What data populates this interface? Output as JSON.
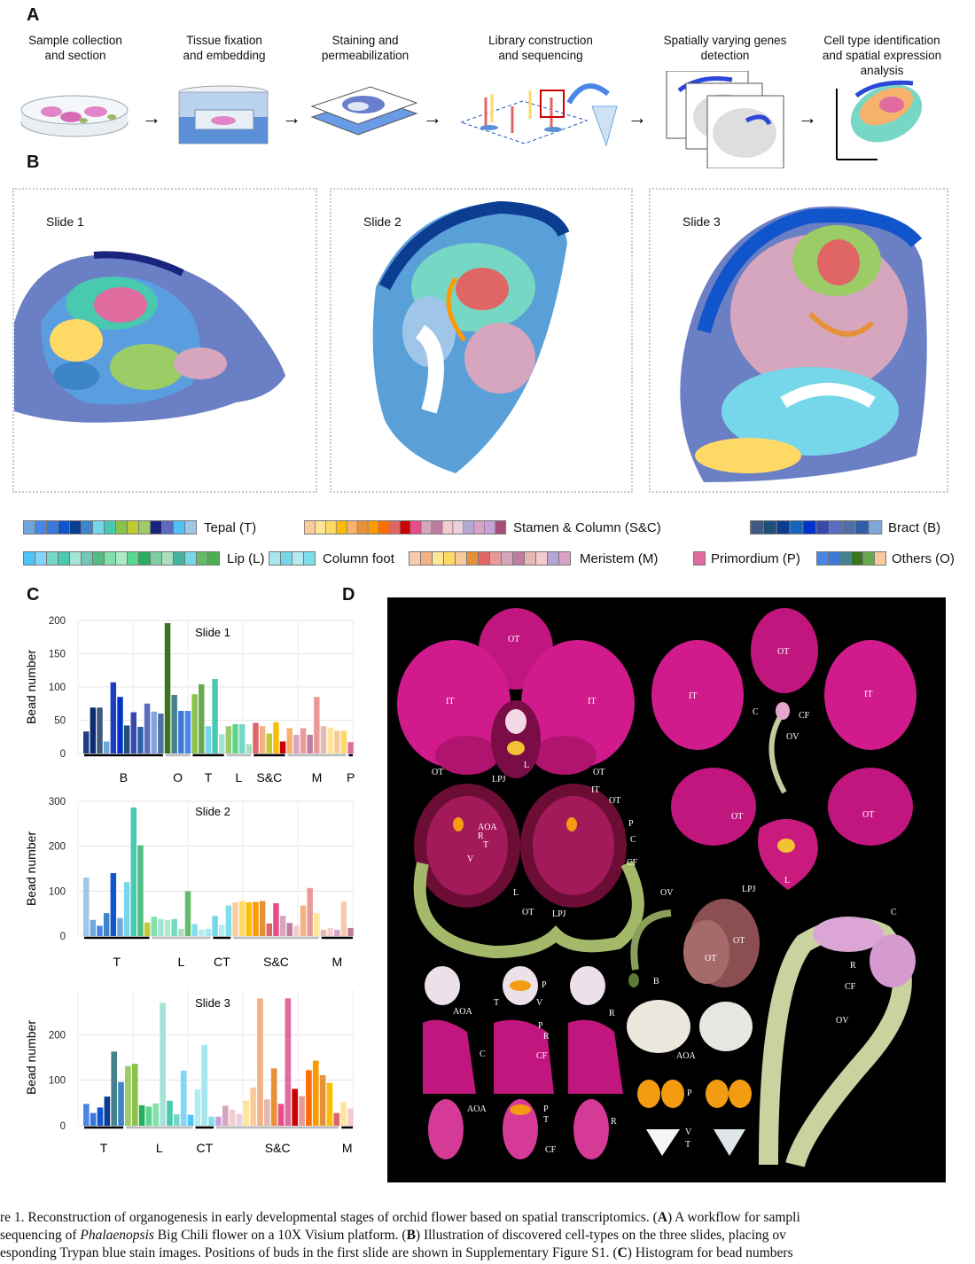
{
  "panelA": {
    "letter": "A",
    "steps": [
      {
        "line1": "Sample collection",
        "line2": "and section",
        "line3": ""
      },
      {
        "line1": "Tissue fixation",
        "line2": "and embedding",
        "line3": ""
      },
      {
        "line1": "Staining and",
        "line2": "permeabilization",
        "line3": ""
      },
      {
        "line1": "Library construction",
        "line2": "and sequencing",
        "line3": ""
      },
      {
        "line1": "Spatially varying genes",
        "line2": "detection",
        "line3": ""
      },
      {
        "line1": "Cell type identification",
        "line2": "and spatial expression",
        "line3": "analysis"
      }
    ]
  },
  "panelB": {
    "letter": "B",
    "slides": [
      "Slide 1",
      "Slide 2",
      "Slide 3"
    ],
    "legend": [
      {
        "label": "Tepal (T)",
        "colors": [
          "#6fa8dc",
          "#4a86e8",
          "#3c78d8",
          "#1155cc",
          "#0b3d91",
          "#3d85c6",
          "#76d7ea",
          "#48c9b0",
          "#8bc34a",
          "#c0ca33",
          "#9ccc65",
          "#1a237e",
          "#5c6bc0",
          "#4fc3f7",
          "#9fc5e8"
        ]
      },
      {
        "label": "Stamen & Column (S&C)",
        "colors": [
          "#f9cb9c",
          "#ffe599",
          "#ffd966",
          "#fbbc04",
          "#f6b26b",
          "#e69138",
          "#ff9900",
          "#ff6d01",
          "#e06666",
          "#cc0000",
          "#ea4c89",
          "#d5a6bd",
          "#c27ba0",
          "#f4cccc",
          "#ead1dc",
          "#b4a7d6",
          "#d9a0c8",
          "#c9a0dc",
          "#a64d79"
        ]
      },
      {
        "label": "Bract (B)",
        "colors": [
          "#3d5a80",
          "#1f4e79",
          "#0b3d91",
          "#1565c0",
          "#0033cc",
          "#3949ab",
          "#5c6bc0",
          "#4f6fa5",
          "#2e5fa8",
          "#7fa7d8"
        ]
      },
      {
        "label": "Lip (L)",
        "colors": [
          "#4fc3f7",
          "#81d4fa",
          "#76d7c4",
          "#48c9b0",
          "#a3e4d7",
          "#73c6b6",
          "#52be80",
          "#82e0aa",
          "#abebc6",
          "#58d68d",
          "#27ae60",
          "#7dcea0",
          "#a9dfbf",
          "#45b39d",
          "#76d7ea",
          "#66bb6a",
          "#4caf50"
        ]
      },
      {
        "label": "Column foot",
        "colors": [
          "#a8e6ef",
          "#76d7ea",
          "#b2ebf2",
          "#80deea"
        ]
      },
      {
        "label": "Meristem (M)",
        "colors": [
          "#f8cbad",
          "#f4b183",
          "#ffe699",
          "#ffd966",
          "#f9cb9c",
          "#e69138",
          "#e06666",
          "#ea9999",
          "#d5a6bd",
          "#c27ba0",
          "#e6b8af",
          "#f4cccc",
          "#b4a7d6",
          "#d9a0c8"
        ]
      },
      {
        "label": "Primordium (P)",
        "colors": [
          "#e06c9f"
        ]
      },
      {
        "label": "Others (O)",
        "colors": [
          "#4a86e8",
          "#3c78d8",
          "#45818e",
          "#38761d",
          "#6aa84f",
          "#f9cb9c"
        ]
      }
    ]
  },
  "panelC": {
    "letter": "C",
    "ylabel": "Bead number"
  },
  "panelD": {
    "letter": "D",
    "labels": {
      "ot": "OT",
      "it": "IT",
      "l": "L",
      "lpj": "LPJ",
      "c": "C",
      "cf": "CF",
      "ov": "OV",
      "aoa": "AOA",
      "r": "R",
      "t": "T",
      "v": "V",
      "p": "P",
      "b": "B"
    }
  },
  "caption": {
    "line1_a": "re 1.  Reconstruction of organogenesis in early developmental stages of orchid flower based on spatial transcriptomics. (",
    "line1_b": "A",
    "line1_c": ") A workflow for sampli",
    "line2_a": "sequencing of ",
    "line2_b": "Phalaenopsis",
    "line2_c": " Big Chili flower on a 10X Visium platform. (",
    "line2_d": "B",
    "line2_e": ") Illustration of discovered cell-types on the three slides, placing ov",
    "line3_a": "esponding Trypan blue stain images. Positions of buds in the first slide are shown in Supplementary Figure S1. (",
    "line3_b": "C",
    "line3_c": ") Histogram for bead numbers"
  },
  "chart_data": [
    {
      "type": "bar",
      "title": "Slide 1",
      "ylabel": "Bead number",
      "ylim": [
        0,
        200
      ],
      "yticks": [
        0,
        50,
        100,
        150,
        200
      ],
      "grid": true,
      "values": [
        33,
        69,
        69,
        18,
        107,
        85,
        42,
        62,
        40,
        75,
        63,
        60,
        196,
        88,
        64,
        64,
        89,
        104,
        41,
        112,
        29,
        41,
        44,
        44,
        14,
        46,
        41,
        30,
        47,
        18,
        38,
        28,
        38,
        28,
        85,
        41,
        39,
        34,
        34,
        17
      ],
      "colors": [
        "#1f3c88",
        "#0b2a6f",
        "#3d5a80",
        "#6fa8dc",
        "#1a3fc0",
        "#0033cc",
        "#1f4e79",
        "#3949ab",
        "#2e5fa8",
        "#5c6bc0",
        "#7fa7d8",
        "#4f6fa5",
        "#38761d",
        "#45818e",
        "#3c78d8",
        "#4a86e8",
        "#8bc34a",
        "#6aa84f",
        "#76d7ea",
        "#48c9b0",
        "#a3e4d7",
        "#9ccc65",
        "#58d68d",
        "#76d7c4",
        "#a9dfbf",
        "#e06666",
        "#f4b183",
        "#c0ca33",
        "#fbbc04",
        "#cc0000",
        "#f6b26b",
        "#d5a6bd",
        "#ea9999",
        "#c27ba0",
        "#ea9999",
        "#e6b8af",
        "#ffe599",
        "#f9cb9c",
        "#ffd966",
        "#e06c9f"
      ],
      "groups": [
        {
          "label": "B",
          "from": 0,
          "to": 11,
          "color": "#000000"
        },
        {
          "label": "O",
          "from": 12,
          "to": 15,
          "color": "#bbbbbb"
        },
        {
          "label": "T",
          "from": 16,
          "to": 20,
          "color": "#000000"
        },
        {
          "label": "L",
          "from": 21,
          "to": 24,
          "color": "#bbbbbb"
        },
        {
          "label": "S&C",
          "from": 25,
          "to": 29,
          "color": "#000000"
        },
        {
          "label": "M",
          "from": 30,
          "to": 38,
          "color": "#bbbbbb"
        },
        {
          "label": "P",
          "from": 39,
          "to": 39,
          "color": "#000000"
        }
      ]
    },
    {
      "type": "bar",
      "title": "Slide 2",
      "ylabel": "Bead number",
      "ylim": [
        0,
        300
      ],
      "yticks": [
        0,
        100,
        200,
        300
      ],
      "grid": true,
      "values": [
        130,
        36,
        23,
        51,
        140,
        40,
        120,
        286,
        202,
        30,
        43,
        38,
        36,
        38,
        16,
        100,
        27,
        14,
        16,
        45,
        25,
        68,
        75,
        78,
        75,
        76,
        78,
        28,
        73,
        45,
        29,
        23,
        68,
        107,
        51,
        14,
        18,
        14,
        77,
        18
      ],
      "colors": [
        "#9fc5e8",
        "#6fa8dc",
        "#4a86e8",
        "#3d85c6",
        "#1155cc",
        "#6fa8dc",
        "#76d7ea",
        "#48c9b0",
        "#52be80",
        "#c0ca33",
        "#82e0aa",
        "#a3e4d7",
        "#abebc6",
        "#76d7c4",
        "#a9dfbf",
        "#66bb6a",
        "#80deea",
        "#b2ebf2",
        "#a8e6ef",
        "#76d7ea",
        "#b2ebf2",
        "#80deea",
        "#f9cb9c",
        "#ffd966",
        "#fbbc04",
        "#ff9900",
        "#e69138",
        "#e06666",
        "#ea4c89",
        "#d5a6bd",
        "#c27ba0",
        "#f4cccc",
        "#f4b183",
        "#ea9999",
        "#ffe699",
        "#e6b8af",
        "#f4cccc",
        "#d9a0c8",
        "#f8cbad",
        "#c27ba0"
      ],
      "groups": [
        {
          "label": "T",
          "from": 0,
          "to": 9,
          "color": "#000000"
        },
        {
          "label": "L",
          "from": 10,
          "to": 18,
          "color": "#bbbbbb"
        },
        {
          "label": "CT",
          "from": 19,
          "to": 21,
          "color": "#000000"
        },
        {
          "label": "S&C",
          "from": 22,
          "to": 34,
          "color": "#bbbbbb"
        },
        {
          "label": "M",
          "from": 35,
          "to": 39,
          "color": "#000000"
        }
      ]
    },
    {
      "type": "bar",
      "title": "Slide 3",
      "ylabel": "Bead number",
      "ylim": [
        0,
        300
      ],
      "yticks": [
        0,
        100,
        200
      ],
      "grid": true,
      "values": [
        48,
        28,
        40,
        64,
        163,
        96,
        131,
        136,
        45,
        42,
        49,
        270,
        55,
        25,
        121,
        24,
        80,
        178,
        20,
        20,
        44,
        35,
        26,
        55,
        84,
        280,
        58,
        126,
        48,
        280,
        81,
        65,
        122,
        143,
        111,
        94,
        28,
        52,
        38
      ],
      "colors": [
        "#4a86e8",
        "#3c78d8",
        "#1155cc",
        "#0b3d91",
        "#45818e",
        "#3d85c6",
        "#9ccc65",
        "#8bc34a",
        "#27ae60",
        "#58d68d",
        "#82e0aa",
        "#a3e4d7",
        "#48c9b0",
        "#76d7c4",
        "#81d4fa",
        "#4fc3f7",
        "#b2ebf2",
        "#a8e6ef",
        "#80deea",
        "#c9a0dc",
        "#d5a6bd",
        "#f4cccc",
        "#ead1dc",
        "#ffe599",
        "#f9cb9c",
        "#f4b183",
        "#e6b8af",
        "#e69138",
        "#ea4c89",
        "#e06c9f",
        "#cc0000",
        "#ea9999",
        "#ff6d01",
        "#ff9900",
        "#e69138",
        "#fbbc04",
        "#e06666",
        "#ffe599",
        "#f4cccc"
      ],
      "groups": [
        {
          "label": "T",
          "from": 0,
          "to": 5,
          "color": "#000000"
        },
        {
          "label": "L",
          "from": 6,
          "to": 15,
          "color": "#bbbbbb"
        },
        {
          "label": "CT",
          "from": 16,
          "to": 18,
          "color": "#000000"
        },
        {
          "label": "S&C",
          "from": 19,
          "to": 36,
          "color": "#bbbbbb"
        },
        {
          "label": "M",
          "from": 37,
          "to": 38,
          "color": "#000000"
        }
      ]
    }
  ]
}
